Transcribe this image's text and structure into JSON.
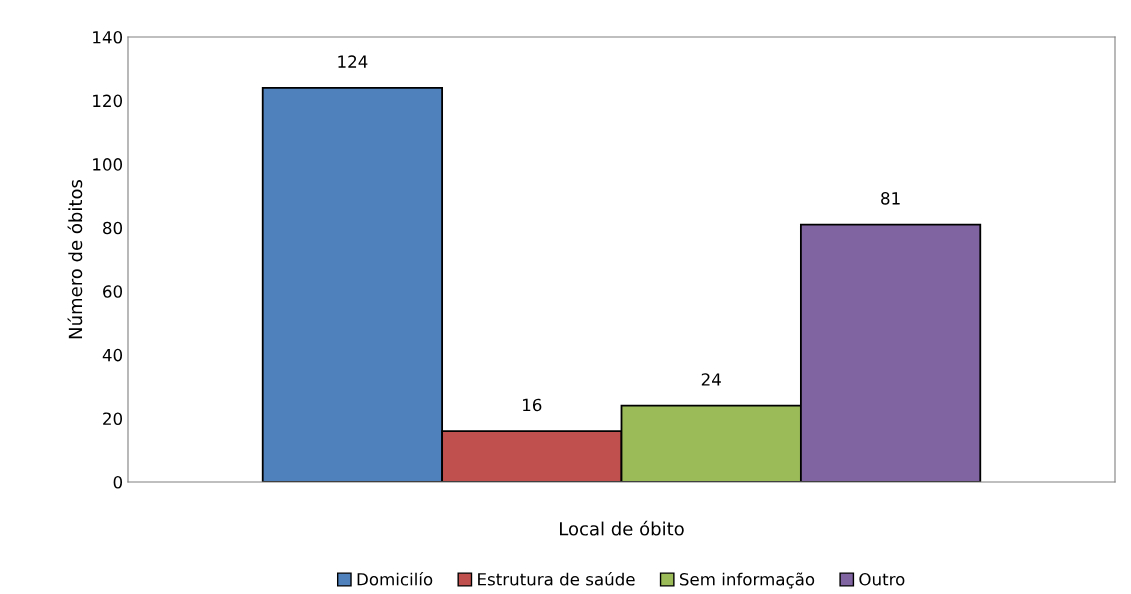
{
  "chart_data": {
    "type": "bar",
    "xlabel": "Local de óbito",
    "ylabel": "Número de óbitos",
    "categories": [
      null
    ],
    "series": [
      {
        "name": "Domicilío",
        "color": "#4f81bd",
        "values": [
          124
        ]
      },
      {
        "name": "Estrutura de saúde",
        "color": "#c0504d",
        "values": [
          16
        ]
      },
      {
        "name": "Sem informação",
        "color": "#9bbb59",
        "values": [
          24
        ]
      },
      {
        "name": "Outro",
        "color": "#8064a2",
        "values": [
          81
        ]
      }
    ],
    "ylim": [
      0,
      140
    ],
    "yticks": [
      0,
      20,
      40,
      60,
      80,
      100,
      120,
      140
    ],
    "grid": false,
    "legend": "bottom",
    "data_labels": true
  }
}
